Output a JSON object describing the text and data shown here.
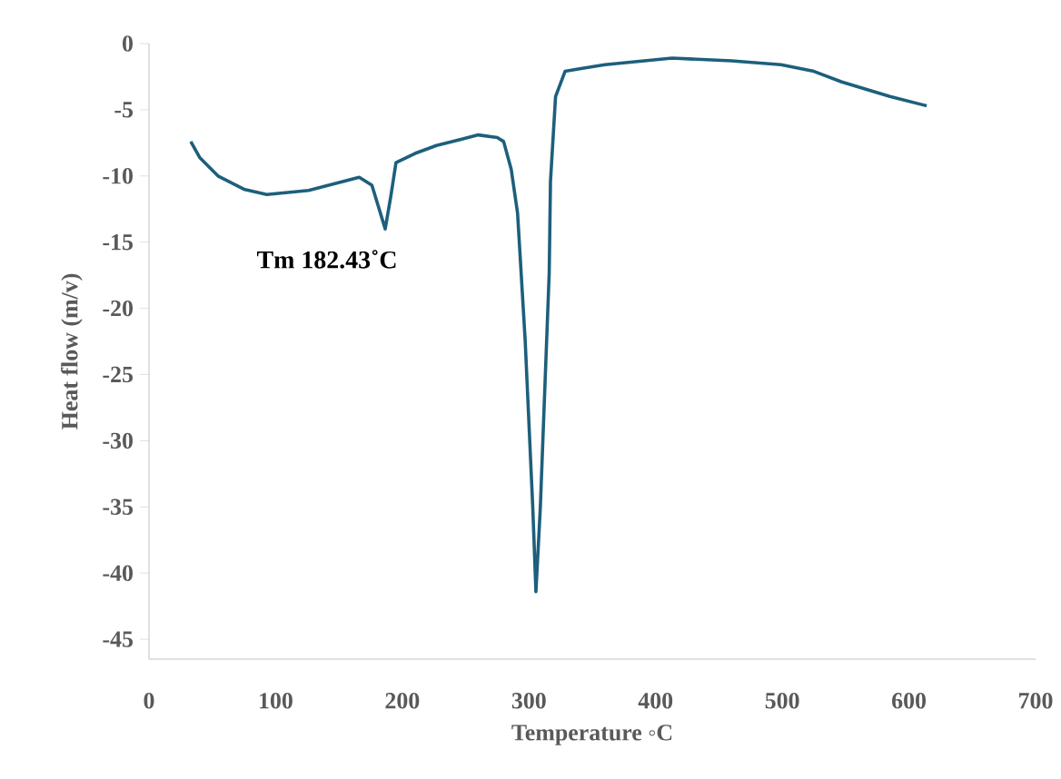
{
  "chart_data": {
    "type": "line",
    "xlabel": "Temperature  ◦C",
    "ylabel": "Heat flow (m/v)",
    "x": [
      33,
      40,
      54.5,
      75,
      93,
      126,
      166,
      176,
      186.5,
      191,
      195,
      210,
      227,
      260,
      275,
      280,
      286,
      291,
      297,
      303,
      305.5,
      309,
      316,
      317,
      321,
      328.5,
      340,
      360,
      413,
      460,
      499,
      525,
      547,
      585,
      614
    ],
    "values": [
      -7.4,
      -8.6,
      -10,
      -11,
      -11.4,
      -11.1,
      -10.1,
      -10.7,
      -14.0,
      -11.5,
      -9.0,
      -8.3,
      -7.7,
      -6.9,
      -7.1,
      -7.4,
      -9.5,
      -12.8,
      -22.4,
      -35,
      -41.4,
      -35,
      -17.3,
      -10.4,
      -4,
      -2.1,
      -1.9,
      -1.6,
      -1.1,
      -1.3,
      -1.6,
      -2.1,
      -2.9,
      -4.0,
      -4.7
    ],
    "color": "#1d5f7c",
    "xlim": [
      0,
      700
    ],
    "xticks": [
      0,
      100,
      200,
      300,
      400,
      500,
      600,
      700
    ],
    "ylim": [
      -46.5,
      0
    ],
    "yticks": [
      0,
      -5,
      -10,
      -15,
      -20,
      -25,
      -30,
      -35,
      -40,
      -45
    ],
    "annotations": [
      {
        "text": "Tm 182.43˚C",
        "x": 186.5,
        "y": -14.0
      }
    ]
  }
}
